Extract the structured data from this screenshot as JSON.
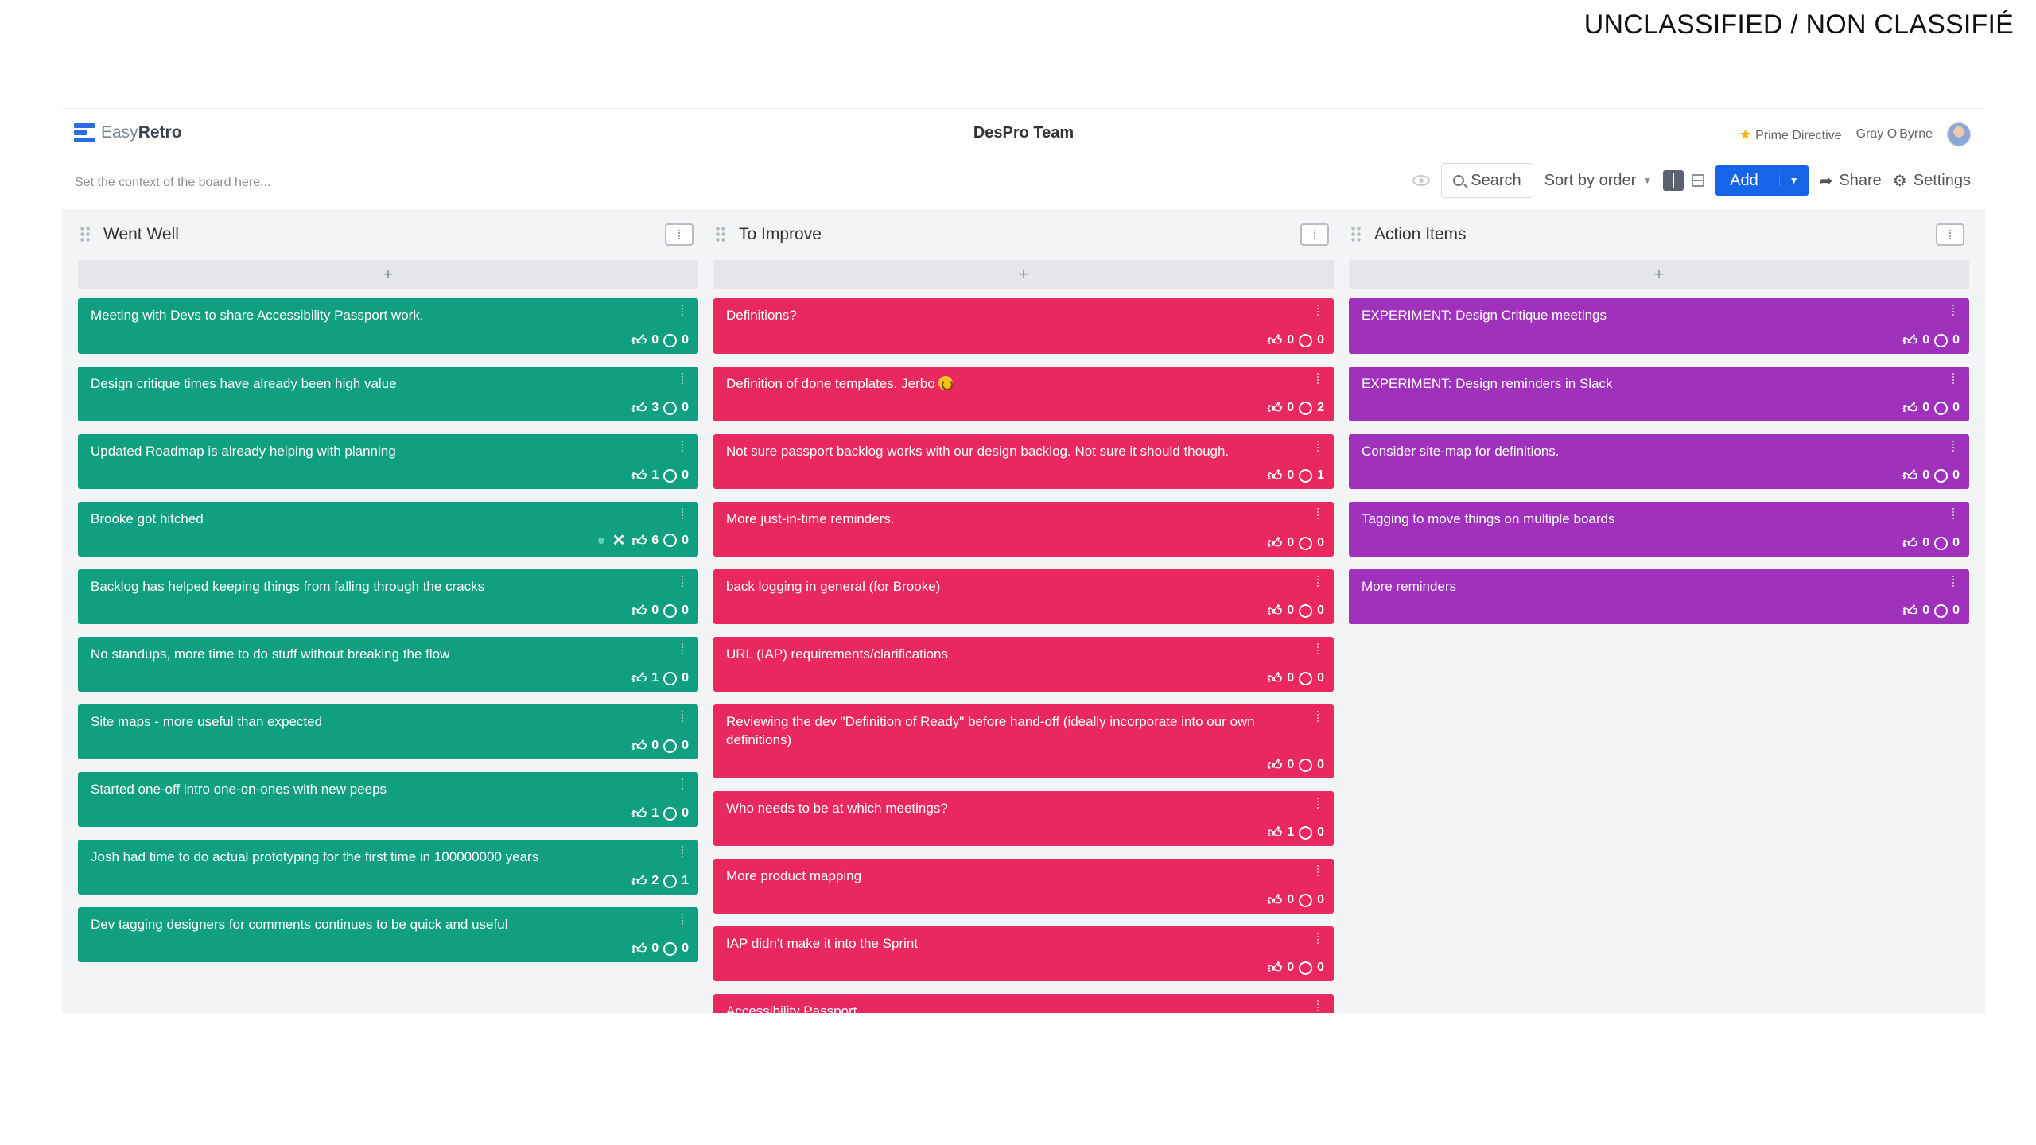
{
  "classification": "UNCLASSIFIED / NON CLASSIFIÉ",
  "app": {
    "logo_easy": "Easy",
    "logo_retro": "Retro",
    "board_title": "DesPro Team",
    "prime_directive": "Prime Directive",
    "user_name": "Gray O'Byrne"
  },
  "toolbar": {
    "context_placeholder": "Set the context of the board here...",
    "search": "Search",
    "sort": "Sort by order",
    "add": "Add",
    "share": "Share",
    "settings": "Settings"
  },
  "colors": {
    "went_well": "#119f82",
    "to_improve": "#e8285e",
    "action_items": "#a031bd",
    "accent": "#1565e8"
  },
  "columns": [
    {
      "title": "Went Well",
      "add": "+",
      "cards": [
        {
          "text": "Meeting with Devs to share Accessibility Passport work.",
          "likes": "0",
          "comments": "0"
        },
        {
          "text": "Design critique times have already been high value",
          "likes": "3",
          "comments": "0"
        },
        {
          "text": "Updated Roadmap is already helping with planning",
          "likes": "1",
          "comments": "0"
        },
        {
          "text": "Brooke got hitched",
          "likes": "6",
          "comments": "0"
        },
        {
          "text": "Backlog has helped keeping things from falling through the cracks",
          "likes": "0",
          "comments": "0"
        },
        {
          "text": "No standups, more time to do stuff without breaking the flow",
          "likes": "1",
          "comments": "0"
        },
        {
          "text": "Site maps - more useful than expected",
          "likes": "0",
          "comments": "0"
        },
        {
          "text": "Started one-off intro one-on-ones with new peeps",
          "likes": "1",
          "comments": "0"
        },
        {
          "text": "Josh had time to do actual prototyping for the first time in 100000000 years",
          "likes": "2",
          "comments": "1"
        },
        {
          "text": "Dev tagging designers for comments continues to be quick and useful",
          "likes": "0",
          "comments": "0"
        }
      ]
    },
    {
      "title": "To Improve",
      "add": "+",
      "cards": [
        {
          "text": "Definitions?",
          "likes": "0",
          "comments": "0"
        },
        {
          "text": "Definition of done templates. Jerbo",
          "likes": "0",
          "comments": "2"
        },
        {
          "text": "Not sure passport backlog works with our design backlog. Not sure it should though.",
          "likes": "0",
          "comments": "1"
        },
        {
          "text": "More just-in-time reminders.",
          "likes": "0",
          "comments": "0"
        },
        {
          "text": "back logging in general (for Brooke)",
          "likes": "0",
          "comments": "0"
        },
        {
          "text": "URL (IAP) requirements/clarifications",
          "likes": "0",
          "comments": "0"
        },
        {
          "text": "Reviewing the dev \"Definition of Ready\" before hand-off (ideally incorporate into our own definitions)",
          "likes": "0",
          "comments": "0"
        },
        {
          "text": "Who needs to be at which meetings?",
          "likes": "1",
          "comments": "0"
        },
        {
          "text": "More product mapping",
          "likes": "0",
          "comments": "0"
        },
        {
          "text": "IAP didn't make it into the Sprint",
          "likes": "0",
          "comments": "0"
        },
        {
          "text": "Accessibility Passport",
          "likes": "",
          "comments": ""
        }
      ]
    },
    {
      "title": "Action Items",
      "add": "+",
      "cards": [
        {
          "text": "EXPERIMENT: Design Critique meetings",
          "likes": "0",
          "comments": "0"
        },
        {
          "text": "EXPERIMENT: Design reminders in Slack",
          "likes": "0",
          "comments": "0"
        },
        {
          "text": "Consider site-map for definitions.",
          "likes": "0",
          "comments": "0"
        },
        {
          "text": "Tagging to move things on multiple boards",
          "likes": "0",
          "comments": "0"
        },
        {
          "text": "More reminders",
          "likes": "0",
          "comments": "0"
        }
      ]
    }
  ]
}
